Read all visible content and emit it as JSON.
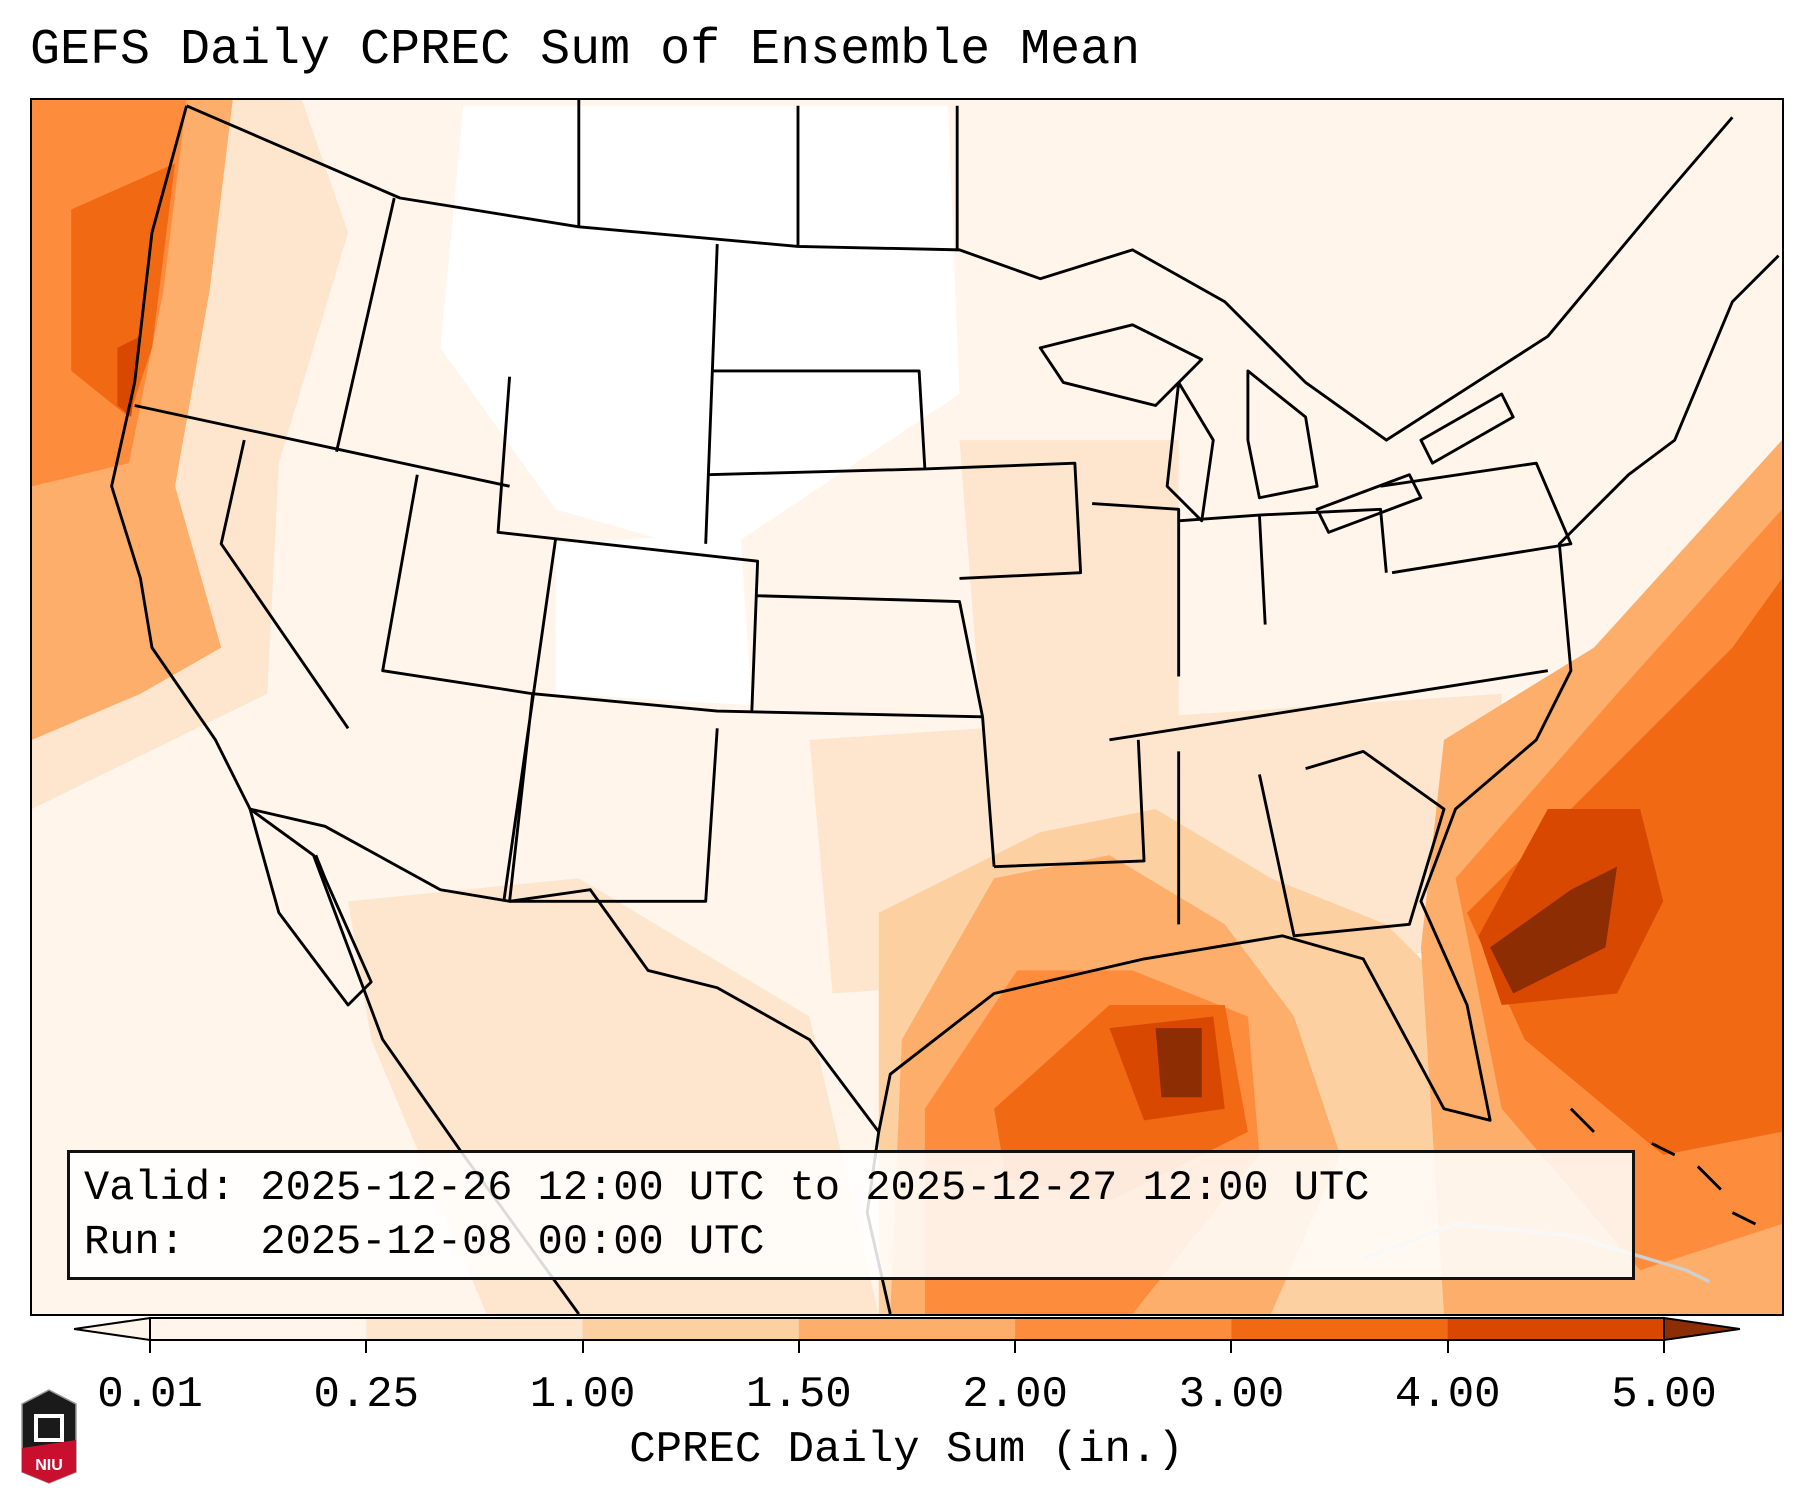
{
  "title": "GEFS Daily CPREC Sum of Ensemble Mean",
  "info": {
    "valid_line": "Valid: 2025-12-26 12:00 UTC to 2025-12-27 12:00 UTC",
    "run_line": "Run:   2025-12-08 00:00 UTC"
  },
  "colorbar": {
    "label": "CPREC Daily Sum (in.)",
    "ticks": [
      "0.01",
      "0.25",
      "1.00",
      "1.50",
      "2.00",
      "3.00",
      "4.00",
      "5.00"
    ],
    "colors": [
      "#fff5eb",
      "#fee6ce",
      "#fdd0a2",
      "#fdae6b",
      "#fd8d3c",
      "#f16913",
      "#d94801",
      "#8c2d04"
    ]
  },
  "logo": {
    "text": "NIU"
  }
}
